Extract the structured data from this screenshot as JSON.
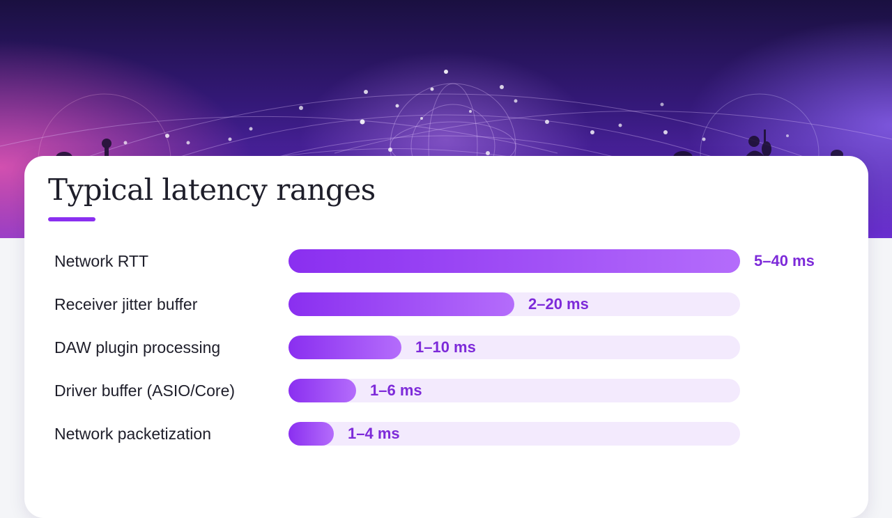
{
  "colors": {
    "accent": "#8a2ff0",
    "bar_start": "#8a2ff0",
    "bar_end": "#b46cfb",
    "track": "#f3eafd",
    "value_text": "#7d2ad9",
    "label_text": "#1e1e2a"
  },
  "hero": {
    "icons": [
      "network-globe-graphic",
      "musician-silhouette-icon"
    ]
  },
  "chart_data": {
    "type": "bar",
    "orientation": "horizontal",
    "title": "Typical latency ranges",
    "categories": [
      "Network RTT",
      "Receiver jitter buffer",
      "DAW plugin processing",
      "Driver buffer (ASIO/Core)",
      "Network packetization"
    ],
    "series": [
      {
        "values": [
          40,
          20,
          10,
          6,
          4
        ]
      }
    ],
    "ranges": [
      [
        5,
        40
      ],
      [
        2,
        20
      ],
      [
        1,
        10
      ],
      [
        1,
        6
      ],
      [
        1,
        4
      ]
    ],
    "value_labels": [
      "5–40 ms",
      "2–20 ms",
      "1–10 ms",
      "1–6 ms",
      "1–4 ms"
    ],
    "xlim": [
      0,
      40
    ],
    "unit": "ms",
    "grid": false,
    "legend": "none"
  }
}
